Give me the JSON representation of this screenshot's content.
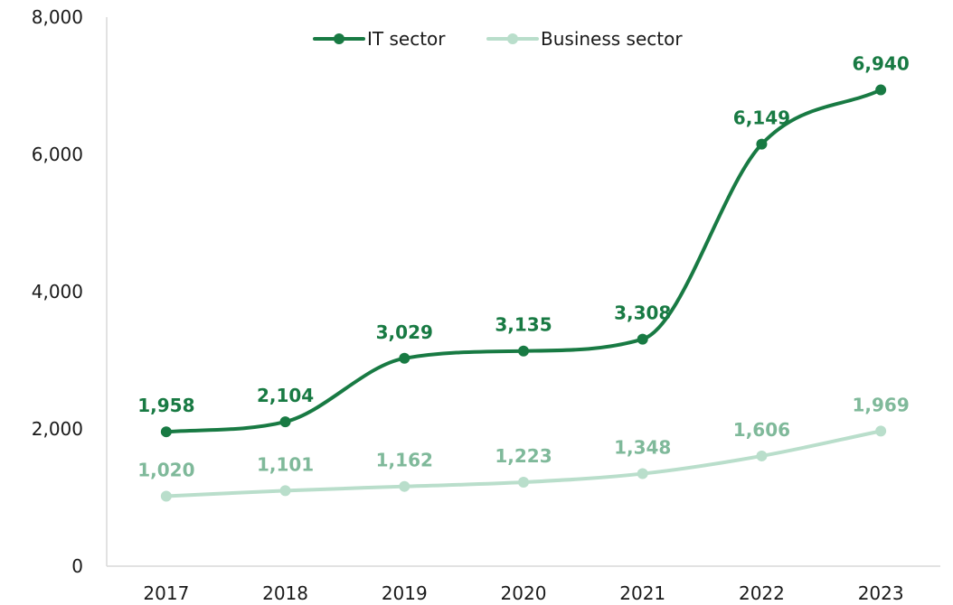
{
  "chart_data": {
    "type": "line",
    "categories": [
      "2017",
      "2018",
      "2019",
      "2020",
      "2021",
      "2022",
      "2023"
    ],
    "series": [
      {
        "name": "IT sector",
        "values": [
          1958,
          2104,
          3029,
          3135,
          3308,
          6149,
          6940
        ],
        "labels": [
          "1,958",
          "2,104",
          "3,029",
          "3,135",
          "3,308",
          "6,149",
          "6,940"
        ],
        "color": "#187a43"
      },
      {
        "name": "Business sector",
        "values": [
          1020,
          1101,
          1162,
          1223,
          1348,
          1606,
          1969
        ],
        "labels": [
          "1,020",
          "1,101",
          "1,162",
          "1,223",
          "1,348",
          "1,606",
          "1,969"
        ],
        "color": "#b9decb",
        "label_color": "#7fb99a"
      }
    ],
    "ylim": [
      0,
      8000
    ],
    "yticks": [
      0,
      2000,
      4000,
      6000,
      8000
    ],
    "ytick_labels": [
      "0",
      "2,000",
      "4,000",
      "6,000",
      "8,000"
    ],
    "grid": false,
    "smooth": true,
    "legend_position": "top-center",
    "title": "",
    "xlabel": "",
    "ylabel": ""
  }
}
